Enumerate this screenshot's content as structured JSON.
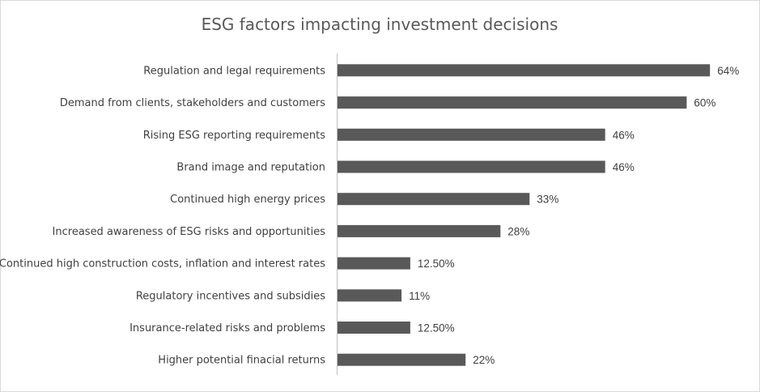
{
  "chart_data": {
    "type": "bar",
    "orientation": "horizontal",
    "title": "ESG factors impacting investment decisions",
    "xlabel": "",
    "ylabel": "",
    "xlim": [
      0,
      70
    ],
    "grid": false,
    "legend": "none",
    "bar_color": "#595959",
    "axis_color": "#bfbfbf",
    "categories": [
      "Regulation and legal requirements",
      "Demand from clients, stakeholders and customers",
      "Rising ESG reporting requirements",
      "Brand image and reputation",
      "Continued high energy prices",
      "Increased awareness of ESG risks and opportunities",
      "Continued high construction costs, inflation and interest rates",
      "Regulatory incentives and subsidies",
      "Insurance-related risks and problems",
      "Higher potential finacial returns"
    ],
    "values": [
      64,
      60,
      46,
      46,
      33,
      28,
      12.5,
      11,
      12.5,
      22
    ],
    "value_labels": [
      "64%",
      "60%",
      "46%",
      "46%",
      "33%",
      "28%",
      "12.50%",
      "11%",
      "12.50%",
      "22%"
    ]
  }
}
